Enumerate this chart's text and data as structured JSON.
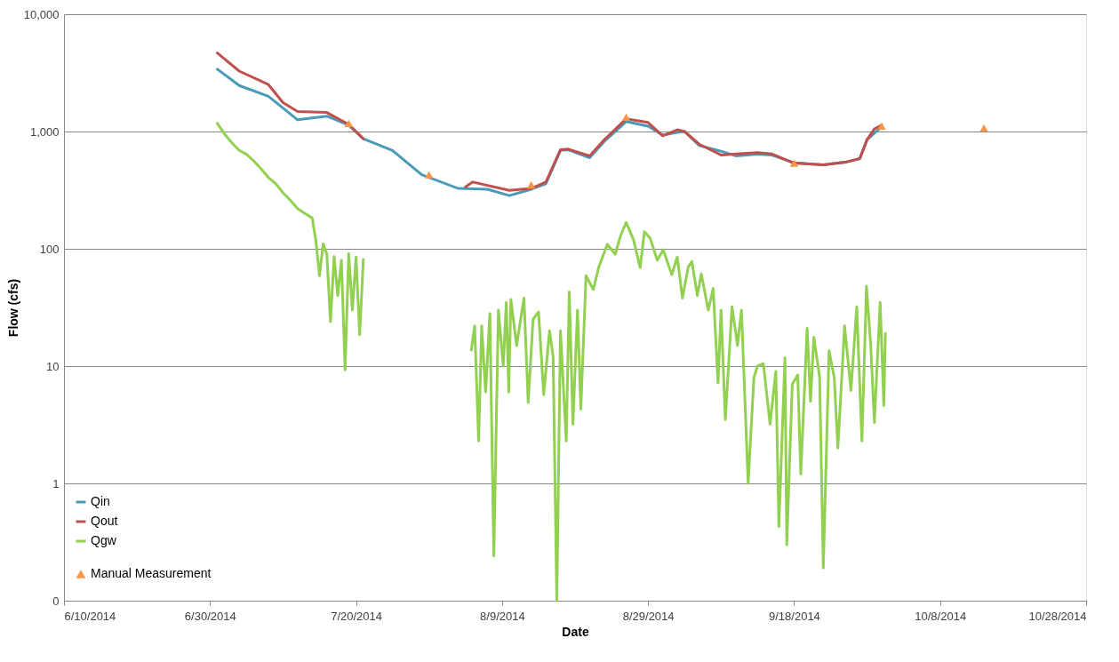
{
  "chart_data": {
    "type": "line",
    "xlabel": "Date",
    "ylabel": "Flow (cfs)",
    "log": "y",
    "grid": "y",
    "legend": "bottom left",
    "xlim": [
      "2014-06-10",
      "2014-10-28"
    ],
    "xticks": [
      {
        "value": "2014-06-10",
        "label": "6/10/2014"
      },
      {
        "value": "2014-06-30",
        "label": "6/30/2014"
      },
      {
        "value": "2014-07-20",
        "label": "7/20/2014"
      },
      {
        "value": "2014-08-09",
        "label": "8/9/2014"
      },
      {
        "value": "2014-08-29",
        "label": "8/29/2014"
      },
      {
        "value": "2014-09-18",
        "label": "9/18/2014"
      },
      {
        "value": "2014-10-08",
        "label": "10/8/2014"
      },
      {
        "value": "2014-10-28",
        "label": "10/28/2014"
      }
    ],
    "ylim": [
      0.1,
      10000
    ],
    "yticks": [
      {
        "value": 0.1,
        "label": "0"
      },
      1,
      10,
      100,
      {
        "value": 1000,
        "label": "1,000"
      },
      {
        "value": 10000,
        "label": "10,000"
      }
    ],
    "series": [
      {
        "name": "Qin",
        "color": "#4a9bb8",
        "line_style": "solid",
        "x": [
          "2014-07-01",
          "2014-07-04",
          "2014-07-08",
          "2014-07-12",
          "2014-07-16",
          "2014-07-19",
          "2014-07-21",
          "2014-07-25",
          "2014-07-29",
          "2014-08-03",
          "2014-08-07",
          "2014-08-10",
          "2014-08-13",
          "2014-08-15",
          "2014-08-17",
          "2014-08-18",
          "2014-08-21",
          "2014-08-23",
          "2014-08-26",
          "2014-08-29",
          "2014-08-31",
          "2014-09-02",
          "2014-09-03",
          "2014-09-05",
          "2014-09-08",
          "2014-09-10",
          "2014-09-13",
          "2014-09-15",
          "2014-09-18",
          "2014-09-22",
          "2014-09-25",
          "2014-09-27",
          "2014-09-28",
          "2014-09-30"
        ],
        "values": [
          3396,
          2466,
          1995,
          1259,
          1352,
          1132,
          867,
          689,
          428,
          327,
          322,
          284,
          322,
          358,
          689,
          700,
          598,
          822,
          1216,
          1112,
          931,
          982,
          1000,
          760,
          680,
          620,
          640,
          630,
          540,
          519,
          547,
          587,
          853,
          1100
        ]
      },
      {
        "name": "Qout",
        "color": "#c0504d",
        "line_style": "solid",
        "x": [
          "2014-07-01",
          "2014-07-04",
          "2014-07-08",
          "2014-07-10",
          "2014-07-12",
          "2014-07-16",
          "2014-07-19",
          "2014-07-21",
          "2014-07-28",
          "2014-08-04",
          "2014-08-05",
          "2014-08-10",
          "2014-08-13",
          "2014-08-15",
          "2014-08-17",
          "2014-08-18",
          "2014-08-21",
          "2014-08-23",
          "2014-08-26",
          "2014-08-29",
          "2014-08-31",
          "2014-09-02",
          "2014-09-03",
          "2014-09-05",
          "2014-09-08",
          "2014-09-10",
          "2014-09-13",
          "2014-09-15",
          "2014-09-18",
          "2014-09-22",
          "2014-09-25",
          "2014-09-27",
          "2014-09-28",
          "2014-09-29",
          "2014-09-30"
        ],
        "values": [
          4667,
          3275,
          2512,
          1764,
          1479,
          1452,
          1150,
          867,
          null,
          337,
          371,
          315,
          327,
          370,
          700,
          710,
          620,
          850,
          1282,
          1194,
          917,
          1035,
          1000,
          780,
          631,
          643,
          660,
          643,
          538,
          519,
          547,
          587,
          853,
          1054,
          1132
        ]
      },
      {
        "name": "Qgw",
        "color": "#92d050",
        "line_style": "solid",
        "x": [
          "2014-07-01",
          "2014-07-02",
          "2014-07-03",
          "2014-07-04",
          "2014-07-05",
          "2014-07-06",
          "2014-07-07",
          "2014-07-08",
          "2014-07-09",
          "2014-07-10",
          "2014-07-11",
          "2014-07-12",
          "2014-07-13",
          "2014-07-14T00:00",
          "2014-07-14T12:00",
          "2014-07-15T00:00",
          "2014-07-15T12:00",
          "2014-07-16T00:00",
          "2014-07-16T12:00",
          "2014-07-17T00:00",
          "2014-07-17T12:00",
          "2014-07-18T00:00",
          "2014-07-18T12:00",
          "2014-07-19T00:00",
          "2014-07-19T12:00",
          "2014-07-20T00:00",
          "2014-07-20T12:00",
          "2014-07-21T00:00",
          "2014-07-28T00:00",
          "2014-08-04T19:00",
          "2014-08-05T06:00",
          "2014-08-05T19:00",
          "2014-08-06T05:00",
          "2014-08-06T18:00",
          "2014-08-07T08:00",
          "2014-08-07T21:00",
          "2014-08-08T12:00",
          "2014-08-09T04:00",
          "2014-08-09T14:00",
          "2014-08-09T22:00",
          "2014-08-10T05:00",
          "2014-08-11T00:00",
          "2014-08-12T00:00",
          "2014-08-12T14:00",
          "2014-08-13T06:00",
          "2014-08-14T00:00",
          "2014-08-14T17:00",
          "2014-08-15T12:00",
          "2014-08-16T00:00",
          "2014-08-16T12:00",
          "2014-08-17T00:00",
          "2014-08-17T19:00",
          "2014-08-18T05:00",
          "2014-08-18T17:00",
          "2014-08-19T08:00",
          "2014-08-19T19:00",
          "2014-08-20T12:00",
          "2014-08-21T12:00",
          "2014-08-22T06:00",
          "2014-08-23T10:00",
          "2014-08-24T12:00",
          "2014-08-25T06:00",
          "2014-08-26T00:00",
          "2014-08-27T00:00",
          "2014-08-27T22:00",
          "2014-08-28T12:00",
          "2014-08-29T07:00",
          "2014-08-30T06:00",
          "2014-08-31T02:00",
          "2014-09-01T06:00",
          "2014-09-02T00:00",
          "2014-09-02T17:00",
          "2014-09-03T12:00",
          "2014-09-04T00:00",
          "2014-09-04T18:00",
          "2014-09-05T07:00",
          "2014-09-06T06:00",
          "2014-09-06T22:00",
          "2014-09-07T14:00",
          "2014-09-08T00:00",
          "2014-09-08T14:00",
          "2014-09-09T12:00",
          "2014-09-10T06:00",
          "2014-09-10T19:00",
          "2014-09-11T17:00",
          "2014-09-12T12:00",
          "2014-09-13T00:00",
          "2014-09-13T19:00",
          "2014-09-14T17:00",
          "2014-09-15T12:00",
          "2014-09-15T22:00",
          "2014-09-16T18:00",
          "2014-09-17T00:00",
          "2014-09-17T18:00",
          "2014-09-18T12:00",
          "2014-09-18T22:00",
          "2014-09-19T19:00",
          "2014-09-20T06:00",
          "2014-09-20T17:00",
          "2014-09-21T12:00",
          "2014-09-22T00:00",
          "2014-09-22T19:00",
          "2014-09-23T12:00",
          "2014-09-24T00:00",
          "2014-09-24T22:00",
          "2014-09-25T19:00",
          "2014-09-26T14:00",
          "2014-09-27T07:00",
          "2014-09-27T22:00",
          "2014-09-28T12:00",
          "2014-09-29T00:00",
          "2014-09-29T19:00",
          "2014-09-30T07:00",
          "2014-09-30T12:00"
        ],
        "values": [
          1173,
          950,
          800,
          690,
          640,
          560,
          480,
          405,
          360,
          300,
          260,
          220,
          200,
          183,
          117,
          59,
          110,
          90,
          24,
          86,
          40,
          80,
          9.3,
          91,
          30,
          85,
          18.5,
          81,
          null,
          13.7,
          22,
          2.3,
          22,
          6,
          28,
          0.24,
          30,
          10,
          35,
          6,
          37,
          15,
          38,
          4.9,
          25,
          29,
          5.7,
          20,
          12,
          0.1,
          20,
          2.3,
          43,
          3.2,
          30,
          4.3,
          59,
          45,
          70,
          109,
          90,
          130,
          168,
          120,
          69,
          140,
          123,
          80,
          98,
          60,
          85,
          38,
          70,
          78,
          40,
          61,
          30,
          46,
          7.2,
          30,
          3.5,
          32,
          15,
          30,
          1.0,
          8,
          10,
          10.5,
          3.2,
          9,
          0.43,
          11.8,
          0.3,
          7,
          8.4,
          1.2,
          21,
          5,
          17.6,
          8,
          0.19,
          13.5,
          8,
          2.0,
          22,
          6.2,
          32,
          2.3,
          48,
          15,
          3.3,
          35,
          4.6,
          19
        ]
      },
      {
        "name": "Manual Measurement",
        "type": "scatter",
        "marker": "triangle",
        "color": "#f79646",
        "x": [
          "2014-07-19",
          "2014-07-30",
          "2014-08-13",
          "2014-08-26",
          "2014-09-18",
          "2014-09-30",
          "2014-10-14"
        ],
        "values": [
          1173,
          428,
          351,
          1327,
          538,
          1112,
          1070
        ]
      }
    ]
  }
}
